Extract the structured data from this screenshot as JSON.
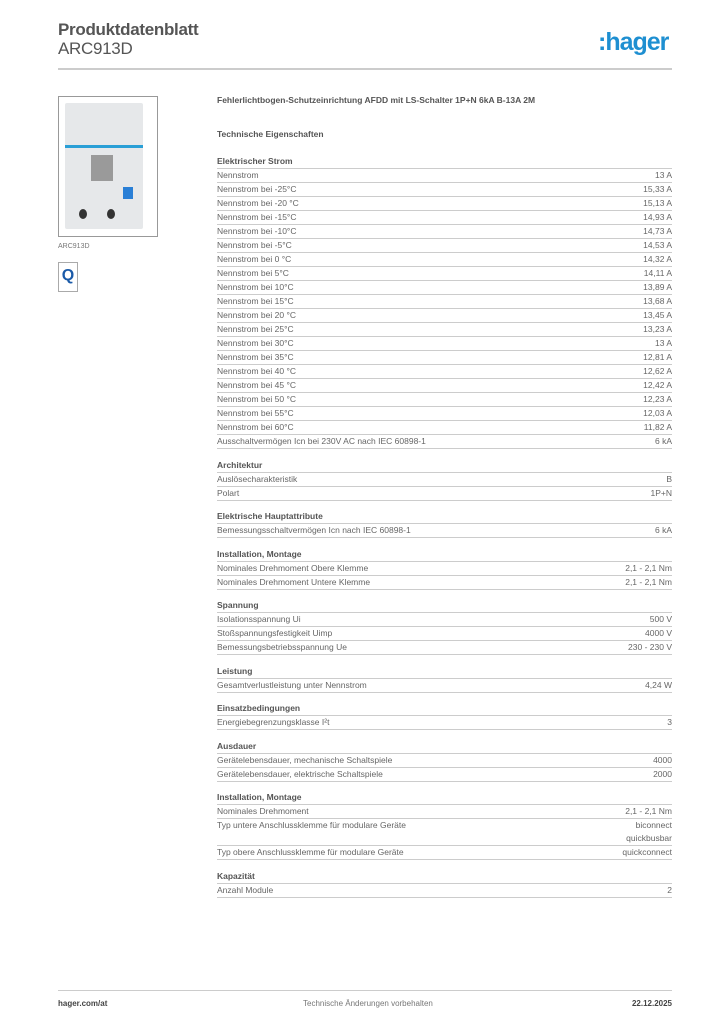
{
  "header": {
    "title": "Produktdatenblatt",
    "code": "ARC913D",
    "logo": ":hager"
  },
  "image": {
    "caption": "ARC913D",
    "badge": "Q"
  },
  "description": "Fehlerlichtbogen-Schutzeinrichtung AFDD mit LS-Schalter 1P+N 6kA B-13A 2M",
  "section_title": "Technische Eigenschaften",
  "sections": [
    {
      "title": "Elektrischer Strom",
      "rows": [
        {
          "label": "Nennstrom",
          "value": "13 A"
        },
        {
          "label": "Nennstrom bei -25°C",
          "value": "15,33 A"
        },
        {
          "label": "Nennstrom bei -20 °C",
          "value": "15,13 A"
        },
        {
          "label": "Nennstrom bei -15°C",
          "value": "14,93 A"
        },
        {
          "label": "Nennstrom bei -10°C",
          "value": "14,73 A"
        },
        {
          "label": "Nennstrom bei -5°C",
          "value": "14,53 A"
        },
        {
          "label": "Nennstrom bei 0 °C",
          "value": "14,32 A"
        },
        {
          "label": "Nennstrom bei 5°C",
          "value": "14,11 A"
        },
        {
          "label": "Nennstrom bei 10°C",
          "value": "13,89 A"
        },
        {
          "label": "Nennstrom bei 15°C",
          "value": "13,68 A"
        },
        {
          "label": "Nennstrom bei 20 °C",
          "value": "13,45 A"
        },
        {
          "label": "Nennstrom bei 25°C",
          "value": "13,23 A"
        },
        {
          "label": "Nennstrom bei 30°C",
          "value": "13 A"
        },
        {
          "label": "Nennstrom bei 35°C",
          "value": "12,81 A"
        },
        {
          "label": "Nennstrom bei 40 °C",
          "value": "12,62 A"
        },
        {
          "label": "Nennstrom bei 45 °C",
          "value": "12,42 A"
        },
        {
          "label": "Nennstrom bei 50 °C",
          "value": "12,23 A"
        },
        {
          "label": "Nennstrom bei 55°C",
          "value": "12,03 A"
        },
        {
          "label": "Nennstrom bei 60°C",
          "value": "11,82 A"
        },
        {
          "label": "Ausschaltvermögen Icn bei 230V AC nach IEC 60898-1",
          "value": "6 kA"
        }
      ]
    },
    {
      "title": "Architektur",
      "rows": [
        {
          "label": "Auslösecharakteristik",
          "value": "B"
        },
        {
          "label": "Polart",
          "value": "1P+N"
        }
      ]
    },
    {
      "title": "Elektrische Hauptattribute",
      "rows": [
        {
          "label": "Bemessungsschaltvermögen Icn nach IEC 60898-1",
          "value": "6 kA"
        }
      ]
    },
    {
      "title": "Installation, Montage",
      "rows": [
        {
          "label": "Nominales Drehmoment Obere Klemme",
          "value": "2,1 - 2,1 Nm"
        },
        {
          "label": "Nominales Drehmoment Untere Klemme",
          "value": "2,1 - 2,1 Nm"
        }
      ]
    },
    {
      "title": "Spannung",
      "rows": [
        {
          "label": "Isolationsspannung Ui",
          "value": "500 V"
        },
        {
          "label": "Stoßspannungsfestigkeit Uimp",
          "value": "4000 V"
        },
        {
          "label": "Bemessungsbetriebsspannung Ue",
          "value": "230 - 230 V"
        }
      ]
    },
    {
      "title": "Leistung",
      "rows": [
        {
          "label": "Gesamtverlustleistung unter Nennstrom",
          "value": "4,24 W"
        }
      ]
    },
    {
      "title": "Einsatzbedingungen",
      "rows": [
        {
          "label": "Energiebegrenzungsklasse I²t",
          "value": "3"
        }
      ]
    },
    {
      "title": "Ausdauer",
      "rows": [
        {
          "label": "Gerätelebensdauer, mechanische Schaltspiele",
          "value": "4000"
        },
        {
          "label": "Gerätelebensdauer, elektrische Schaltspiele",
          "value": "2000"
        }
      ]
    },
    {
      "title": "Installation, Montage",
      "rows": [
        {
          "label": "Nominales Drehmoment",
          "value": "2,1 - 2,1 Nm"
        },
        {
          "label": "Typ untere Anschlussklemme für modulare Geräte",
          "value": "biconnect\nquickbusbar"
        },
        {
          "label": "Typ obere Anschlussklemme für modulare Geräte",
          "value": "quickconnect"
        }
      ]
    },
    {
      "title": "Kapazität",
      "rows": [
        {
          "label": "Anzahl Module",
          "value": "2"
        }
      ]
    }
  ],
  "footer": {
    "website": "hager.com/at",
    "note": "Technische Änderungen vorbehalten",
    "date": "22.12.2025"
  },
  "colors": {
    "brand": "#1e8fd1"
  }
}
